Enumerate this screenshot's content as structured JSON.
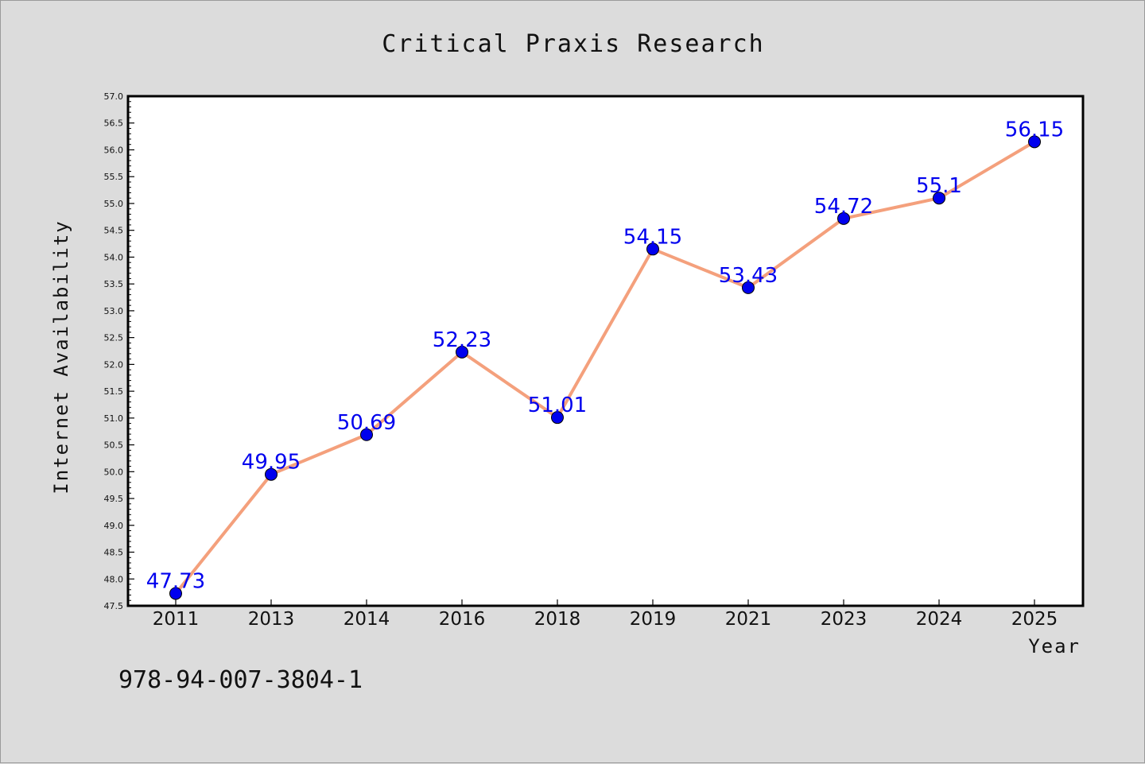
{
  "chart_data": {
    "type": "line",
    "title": "Critical Praxis Research",
    "xlabel": "Year",
    "ylabel": "Internet Availability",
    "categories": [
      "2011",
      "2013",
      "2014",
      "2016",
      "2018",
      "2019",
      "2021",
      "2023",
      "2024",
      "2025"
    ],
    "series": [
      {
        "values": [
          47.73,
          49.95,
          50.69,
          52.23,
          51.01,
          54.15,
          53.43,
          54.72,
          55.1,
          56.15
        ],
        "data_labels": [
          "47.73",
          "49.95",
          "50.69",
          "52.23",
          "51.01",
          "54.15",
          "53.43",
          "54.72",
          "55.1",
          "56.15"
        ]
      }
    ],
    "ylim": [
      47.5,
      57.0
    ],
    "yticks": [
      "47.5",
      "48.0",
      "48.5",
      "49.0",
      "49.5",
      "50.0",
      "50.5",
      "51.0",
      "51.5",
      "52.0",
      "52.5",
      "53.0",
      "53.5",
      "54.0",
      "54.5",
      "55.0",
      "55.5",
      "56.0",
      "56.5",
      "57.0"
    ],
    "grid": false,
    "line_color": "#f4a07c",
    "marker_color": "#0000ee",
    "label_color": "#0000ee",
    "background": "#dcdcdc",
    "plot_background": "#ffffff"
  },
  "footer": {
    "isbn": "978-94-007-3804-1"
  }
}
